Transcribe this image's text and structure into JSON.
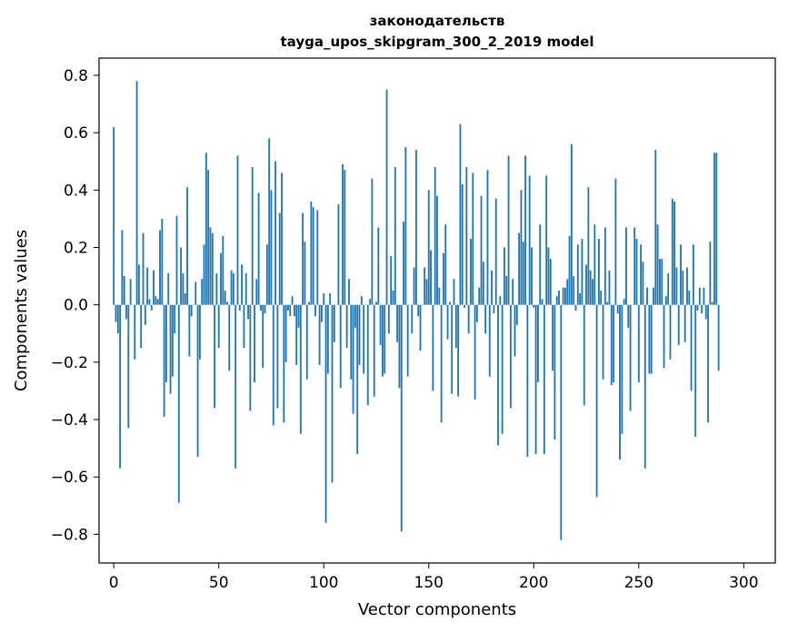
{
  "chart_data": {
    "type": "bar",
    "title_line1": "законодательств",
    "title_line2": "tayga_upos_skipgram_300_2_2019 model",
    "xlabel": "Vector components",
    "ylabel": "Components values",
    "xlim": [
      -7,
      315
    ],
    "ylim": [
      -0.9,
      0.86
    ],
    "xticks": [
      0,
      50,
      100,
      150,
      200,
      250,
      300
    ],
    "xtick_labels": [
      "0",
      "50",
      "100",
      "150",
      "200",
      "250",
      "300"
    ],
    "yticks": [
      -0.8,
      -0.6,
      -0.4,
      -0.2,
      0.0,
      0.2,
      0.4,
      0.6,
      0.8
    ],
    "ytick_labels": [
      "−0.8",
      "−0.6",
      "−0.4",
      "−0.2",
      "0.0",
      "0.2",
      "0.4",
      "0.6",
      "0.8"
    ],
    "color": "#1f77b4",
    "values": [
      0.62,
      -0.06,
      -0.1,
      -0.57,
      0.26,
      0.1,
      -0.05,
      -0.43,
      0.09,
      0.0,
      -0.19,
      0.78,
      0.14,
      -0.15,
      0.25,
      -0.07,
      0.13,
      0.02,
      -0.02,
      0.12,
      0.03,
      0.02,
      0.26,
      0.3,
      -0.39,
      -0.27,
      0.11,
      -0.31,
      -0.25,
      -0.1,
      0.31,
      -0.69,
      0.2,
      0.11,
      0.04,
      0.41,
      -0.18,
      -0.04,
      0.0,
      0.08,
      -0.53,
      -0.19,
      0.09,
      0.21,
      0.53,
      0.47,
      0.27,
      0.25,
      -0.36,
      0.11,
      -0.15,
      0.18,
      0.24,
      0.05,
      0.01,
      -0.23,
      0.12,
      0.11,
      -0.57,
      0.52,
      -0.02,
      0.14,
      -0.15,
      0.11,
      -0.05,
      -0.37,
      0.48,
      -0.27,
      0.09,
      0.39,
      -0.02,
      -0.22,
      -0.03,
      0.21,
      0.58,
      0.4,
      -0.42,
      0.5,
      -0.36,
      0.32,
      0.46,
      -0.41,
      -0.2,
      -0.02,
      -0.04,
      0.03,
      -0.04,
      -0.21,
      -0.08,
      -0.45,
      0.32,
      0.22,
      -0.26,
      0.01,
      0.36,
      0.34,
      -0.04,
      0.33,
      -0.21,
      -0.06,
      0.04,
      -0.76,
      -0.24,
      0.04,
      -0.62,
      -0.13,
      0.0,
      0.35,
      -0.29,
      0.49,
      0.47,
      -0.15,
      0.09,
      -0.26,
      -0.38,
      -0.08,
      -0.52,
      -0.21,
      0.03,
      -0.24,
      0.0,
      -0.35,
      0.02,
      0.44,
      -0.32,
      0.01,
      0.27,
      -0.14,
      -0.25,
      -0.24,
      0.75,
      -0.1,
      0.17,
      0.05,
      0.48,
      -0.13,
      -0.29,
      -0.79,
      0.29,
      0.55,
      -0.25,
      0.0,
      -0.1,
      0.13,
      0.54,
      -0.04,
      -0.16,
      0.0,
      0.13,
      0.09,
      0.4,
      0.19,
      -0.3,
      0.48,
      0.38,
      0.06,
      -0.41,
      0.18,
      0.28,
      -0.12,
      0.01,
      -0.31,
      0.09,
      -0.15,
      -0.32,
      0.63,
      0.42,
      -0.01,
      0.48,
      -0.1,
      0.23,
      0.46,
      -0.33,
      -0.06,
      0.06,
      0.38,
      0.15,
      -0.1,
      0.47,
      -0.25,
      0.12,
      -0.03,
      0.37,
      -0.49,
      0.03,
      -0.45,
      0.2,
      0.1,
      0.52,
      -0.36,
      0.09,
      -0.18,
      -0.07,
      0.25,
      0.4,
      0.22,
      0.52,
      -0.53,
      0.45,
      0.2,
      -0.01,
      -0.52,
      -0.27,
      0.28,
      0.02,
      -0.52,
      0.45,
      0.2,
      0.16,
      -0.23,
      -0.47,
      0.03,
      0.05,
      -0.82,
      0.06,
      0.06,
      0.09,
      0.24,
      0.56,
      0.1,
      -0.02,
      0.21,
      0.04,
      0.23,
      -0.35,
      0.14,
      0.41,
      0.12,
      0.09,
      0.28,
      -0.67,
      0.23,
      0.05,
      -0.26,
      0.27,
      0.01,
      0.12,
      -0.28,
      -0.27,
      0.44,
      -0.03,
      -0.54,
      -0.45,
      0.02,
      0.27,
      -0.08,
      -0.37,
      0.0,
      0.27,
      0.23,
      -0.27,
      0.21,
      0.15,
      -0.57,
      0.06,
      -0.24,
      -0.24,
      0.06,
      0.54,
      0.28,
      0.16,
      0.16,
      -0.22,
      0.03,
      0.11,
      -0.19,
      0.37,
      0.36,
      0.13,
      -0.14,
      0.21,
      0.12,
      -0.13,
      0.13,
      0.05,
      -0.3,
      0.21,
      -0.46,
      -0.02,
      0.06,
      -0.03,
      0.06,
      -0.05,
      -0.41,
      0.22,
      0.01,
      0.53,
      0.53,
      -0.23
    ]
  }
}
